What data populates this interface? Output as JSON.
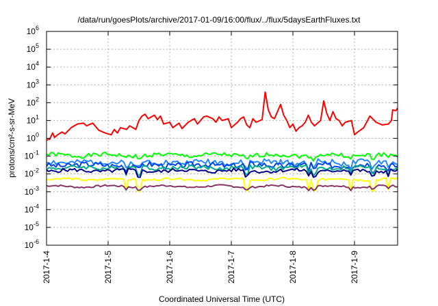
{
  "chart_data": {
    "type": "line",
    "title": "/data/run/goesPlots/archive/2017-01-09/16:00/flux/../flux/5daysEarthFluxes.txt",
    "xlabel": "Coordinated Universal Time (UTC)",
    "ylabel": "protons/cm²-s-sr-MeV",
    "y_scale": "log",
    "ylim_exponents": [
      -6,
      6
    ],
    "y_tick_labels": [
      {
        "e": -6,
        "text": "10",
        "sup": "-6"
      },
      {
        "e": -5,
        "text": "10",
        "sup": "-5"
      },
      {
        "e": -4,
        "text": "10",
        "sup": "-4"
      },
      {
        "e": -3,
        "text": "10",
        "sup": "-3"
      },
      {
        "e": -2,
        "text": "10",
        "sup": "-2"
      },
      {
        "e": -1,
        "text": "10",
        "sup": "-1"
      },
      {
        "e": 0,
        "text": "10",
        "sup": "0"
      },
      {
        "e": 1,
        "text": "10",
        "sup": "1"
      },
      {
        "e": 2,
        "text": "10",
        "sup": "2"
      },
      {
        "e": 3,
        "text": "10",
        "sup": "3"
      },
      {
        "e": 4,
        "text": "10",
        "sup": "4"
      },
      {
        "e": 5,
        "text": "10",
        "sup": "5"
      },
      {
        "e": 6,
        "text": "10",
        "sup": "6"
      }
    ],
    "xlim_days": [
      0,
      5.7
    ],
    "x_tick_labels": [
      "2017-1-4",
      "2017-1-5",
      "2017-1-6",
      "2017-1-7",
      "2017-1-8",
      "2017-1-9"
    ],
    "grid": true,
    "series": [
      {
        "color": "#ff0000",
        "width": 2,
        "values": [
          [
            0,
            -0.1
          ],
          [
            0.05,
            -0.05
          ],
          [
            0.1,
            0.3
          ],
          [
            0.13,
            0.05
          ],
          [
            0.18,
            0.2
          ],
          [
            0.25,
            0.35
          ],
          [
            0.3,
            0.25
          ],
          [
            0.4,
            0.6
          ],
          [
            0.5,
            0.8
          ],
          [
            0.6,
            0.85
          ],
          [
            0.65,
            0.7
          ],
          [
            0.75,
            0.85
          ],
          [
            0.85,
            0.45
          ],
          [
            0.95,
            0.3
          ],
          [
            1.05,
            0.2
          ],
          [
            1.1,
            0.5
          ],
          [
            1.15,
            0.3
          ],
          [
            1.2,
            0.6
          ],
          [
            1.3,
            0.5
          ],
          [
            1.35,
            0.7
          ],
          [
            1.45,
            0.5
          ],
          [
            1.5,
            1.0
          ],
          [
            1.55,
            1.25
          ],
          [
            1.6,
            1.35
          ],
          [
            1.65,
            1.1
          ],
          [
            1.75,
            1.3
          ],
          [
            1.8,
            1.05
          ],
          [
            1.85,
            1.25
          ],
          [
            1.9,
            0.8
          ],
          [
            2.0,
            0.9
          ],
          [
            2.05,
            0.6
          ],
          [
            2.15,
            0.85
          ],
          [
            2.2,
            0.55
          ],
          [
            2.3,
            0.9
          ],
          [
            2.35,
            1.0
          ],
          [
            2.4,
            1.1
          ],
          [
            2.45,
            0.8
          ],
          [
            2.55,
            1.2
          ],
          [
            2.6,
            1.25
          ],
          [
            2.7,
            1.1
          ],
          [
            2.75,
            0.9
          ],
          [
            2.8,
            1.2
          ],
          [
            2.85,
            1.0
          ],
          [
            2.95,
            1.1
          ],
          [
            3.0,
            0.6
          ],
          [
            3.1,
            0.9
          ],
          [
            3.15,
            1.1
          ],
          [
            3.2,
            1.2
          ],
          [
            3.25,
            0.75
          ],
          [
            3.3,
            0.6
          ],
          [
            3.35,
            1.1
          ],
          [
            3.4,
            0.9
          ],
          [
            3.5,
            1.05
          ],
          [
            3.55,
            2.6
          ],
          [
            3.6,
            1.6
          ],
          [
            3.65,
            1.2
          ],
          [
            3.7,
            1.1
          ],
          [
            3.8,
            1.9
          ],
          [
            3.85,
            1.3
          ],
          [
            3.9,
            1.0
          ],
          [
            3.95,
            0.6
          ],
          [
            4.0,
            0.8
          ],
          [
            4.05,
            0.4
          ],
          [
            4.1,
            0.6
          ],
          [
            4.15,
            0.7
          ],
          [
            4.2,
            0.9
          ],
          [
            4.25,
            1.3
          ],
          [
            4.3,
            0.9
          ],
          [
            4.35,
            0.7
          ],
          [
            4.45,
            1.0
          ],
          [
            4.5,
            2.1
          ],
          [
            4.55,
            1.4
          ],
          [
            4.6,
            1.0
          ],
          [
            4.65,
            1.5
          ],
          [
            4.7,
            1.1
          ],
          [
            4.75,
            1.0
          ],
          [
            4.8,
            0.7
          ],
          [
            4.85,
            0.9
          ],
          [
            4.95,
            1.0
          ],
          [
            5.0,
            0.2
          ],
          [
            5.05,
            0.35
          ],
          [
            5.15,
            0.6
          ],
          [
            5.25,
            1.25
          ],
          [
            5.35,
            0.9
          ],
          [
            5.45,
            0.75
          ],
          [
            5.55,
            0.8
          ],
          [
            5.6,
            1.0
          ],
          [
            5.62,
            1.6
          ],
          [
            5.67,
            1.55
          ],
          [
            5.7,
            1.7
          ]
        ]
      },
      {
        "color": "#00ff00",
        "width": 2,
        "base": -0.95,
        "amp": 0.12,
        "spike": -0.2,
        "seed": 1
      },
      {
        "color": "#2288ff",
        "width": 2,
        "base": -1.35,
        "amp": 0.18,
        "spike": -0.3,
        "seed": 2
      },
      {
        "color": "#0044ee",
        "width": 2,
        "base": -1.5,
        "amp": 0.16,
        "spike": -0.3,
        "seed": 3
      },
      {
        "color": "#00aa88",
        "width": 2,
        "base": -1.65,
        "amp": 0.12,
        "spike": -0.35,
        "seed": 4
      },
      {
        "color": "#00008b",
        "width": 2,
        "base": -1.82,
        "amp": 0.1,
        "spike": -0.3,
        "seed": 5
      },
      {
        "color": "#ffff00",
        "width": 2,
        "base": -2.3,
        "amp": 0.06,
        "spike": -0.6,
        "seed": 6
      },
      {
        "color": "#883366",
        "width": 2,
        "base": -2.7,
        "amp": 0.05,
        "spike": -0.15,
        "seed": 7
      }
    ]
  }
}
